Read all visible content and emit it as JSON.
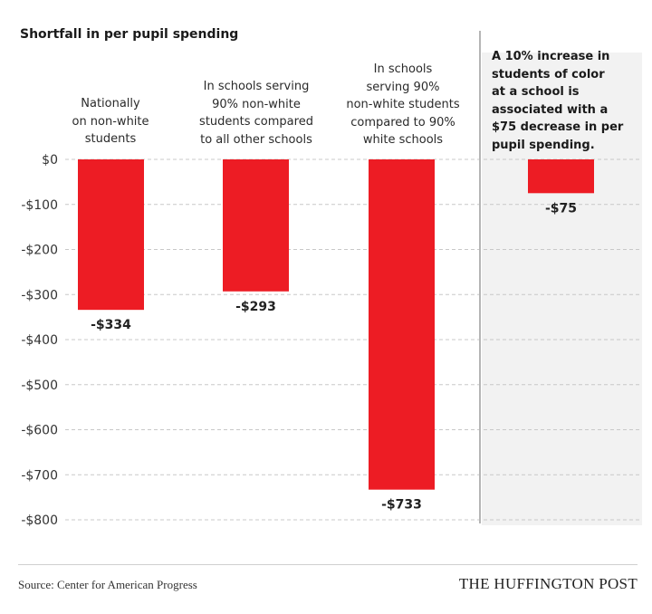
{
  "chart_data": {
    "type": "bar",
    "title": "Shortfall in per pupil spending",
    "categories": [
      "Nationally\non non-white\nstudents",
      "In schools serving\n90% non-white\nstudents compared\nto  all other schools",
      "In schools\nserving 90%\nnon-white students\ncompared to 90%\nwhite schools",
      ""
    ],
    "values": [
      -334,
      -293,
      -733,
      -75
    ],
    "data_labels": [
      "-$334",
      "-$293",
      "-$733",
      "-$75"
    ],
    "ylabel": "",
    "xlabel": "",
    "ylim": [
      -800,
      0
    ],
    "yticks": [
      0,
      -100,
      -200,
      -300,
      -400,
      -500,
      -600,
      -700,
      -800
    ],
    "ytick_labels": [
      "$0",
      "-$100",
      "-$200",
      "-$300",
      "-$400",
      "-$500",
      "-$600",
      "-$700",
      "-$800"
    ],
    "grid": true,
    "grid_style": "dashed",
    "bar_color": "#ed1c24",
    "highlight_panel_note": "A 10% increase in\nstudents of color\nat a school is\nassociated with a\n$75 decrease in per\npupil spending.",
    "highlight_panel_color": "#f2f2f2"
  },
  "footer": {
    "source": "Source: Center for American Progress",
    "brand": "THE HUFFINGTON POST"
  }
}
